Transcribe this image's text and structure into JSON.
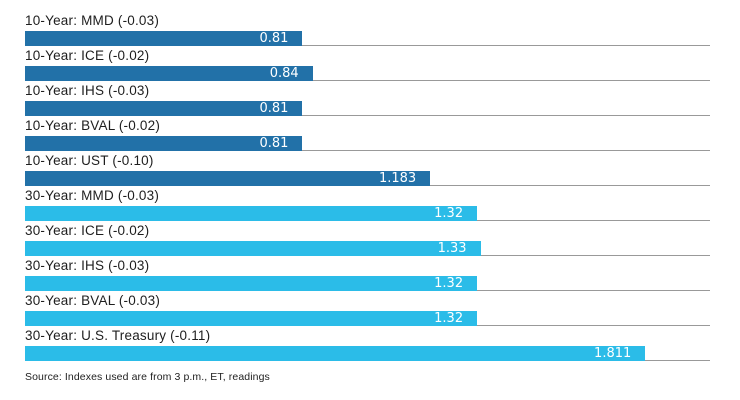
{
  "source_note": "Source: Indexes used are from 3 p.m., ET, readings",
  "colors": {
    "ten_year_bar": "#2271A8",
    "thirty_year_bar": "#2BBCE8",
    "baseline": "#999999",
    "label_text": "#1E1E1E",
    "value_text": "#FFFFFF",
    "background": "#FFFFFF"
  },
  "chart_data": {
    "type": "bar",
    "orientation": "horizontal",
    "title": "",
    "xlabel": "",
    "ylabel": "",
    "axis_min": 0,
    "axis_max": 2.0,
    "grid": false,
    "legend": false,
    "rows": [
      {
        "label": "10-Year: MMD (-0.03)",
        "value": 0.81,
        "value_label": "0.81",
        "group": "10-year"
      },
      {
        "label": "10-Year: ICE (-0.02)",
        "value": 0.84,
        "value_label": "0.84",
        "group": "10-year"
      },
      {
        "label": "10-Year: IHS (-0.03)",
        "value": 0.81,
        "value_label": "0.81",
        "group": "10-year"
      },
      {
        "label": "10-Year: BVAL (-0.02)",
        "value": 0.81,
        "value_label": "0.81",
        "group": "10-year"
      },
      {
        "label": "10-Year: UST (-0.10)",
        "value": 1.183,
        "value_label": "1.183",
        "group": "10-year"
      },
      {
        "label": "30-Year: MMD (-0.03)",
        "value": 1.32,
        "value_label": "1.32",
        "group": "30-year"
      },
      {
        "label": "30-Year: ICE (-0.02)",
        "value": 1.33,
        "value_label": "1.33",
        "group": "30-year"
      },
      {
        "label": "30-Year: IHS (-0.03)",
        "value": 1.32,
        "value_label": "1.32",
        "group": "30-year"
      },
      {
        "label": "30-Year: BVAL (-0.03)",
        "value": 1.32,
        "value_label": "1.32",
        "group": "30-year"
      },
      {
        "label": "30-Year: U.S. Treasury (-0.11)",
        "value": 1.811,
        "value_label": "1.811",
        "group": "30-year"
      }
    ]
  }
}
